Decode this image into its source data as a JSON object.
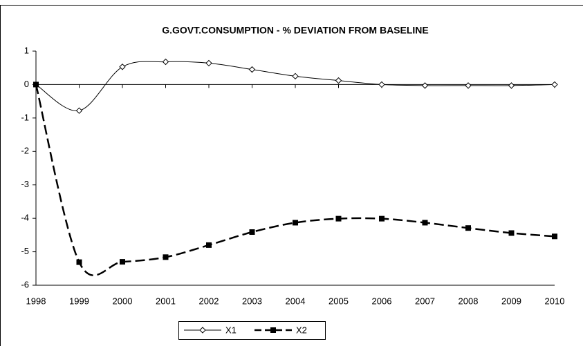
{
  "chart_data": {
    "type": "line",
    "title": "G.GOVT.CONSUMPTION - % DEVIATION FROM BASELINE",
    "x": [
      1998,
      1999,
      2000,
      2001,
      2002,
      2003,
      2004,
      2005,
      2006,
      2007,
      2008,
      2009,
      2010
    ],
    "series": [
      {
        "name": "X1",
        "color": "#000000",
        "marker": "diamond",
        "dashed": false,
        "values": [
          0,
          -0.78,
          0.53,
          0.68,
          0.64,
          0.45,
          0.25,
          0.12,
          0,
          -0.03,
          -0.03,
          -0.03,
          0
        ]
      },
      {
        "name": "X2",
        "color": "#000000",
        "marker": "square",
        "dashed": true,
        "values": [
          0,
          -5.31,
          -5.3,
          -5.16,
          -4.8,
          -4.41,
          -4.13,
          -4.01,
          -4.01,
          -4.13,
          -4.29,
          -4.44,
          -4.54
        ]
      }
    ],
    "xlim": [
      1998,
      2010
    ],
    "xticks": [
      1998,
      1999,
      2000,
      2001,
      2002,
      2003,
      2004,
      2005,
      2006,
      2007,
      2008,
      2009,
      2010
    ],
    "ylim": [
      -6,
      1
    ],
    "yticks": [
      -6,
      -5,
      -4,
      -3,
      -2,
      -1,
      0,
      1
    ],
    "grid": false,
    "legend": "bottom"
  }
}
